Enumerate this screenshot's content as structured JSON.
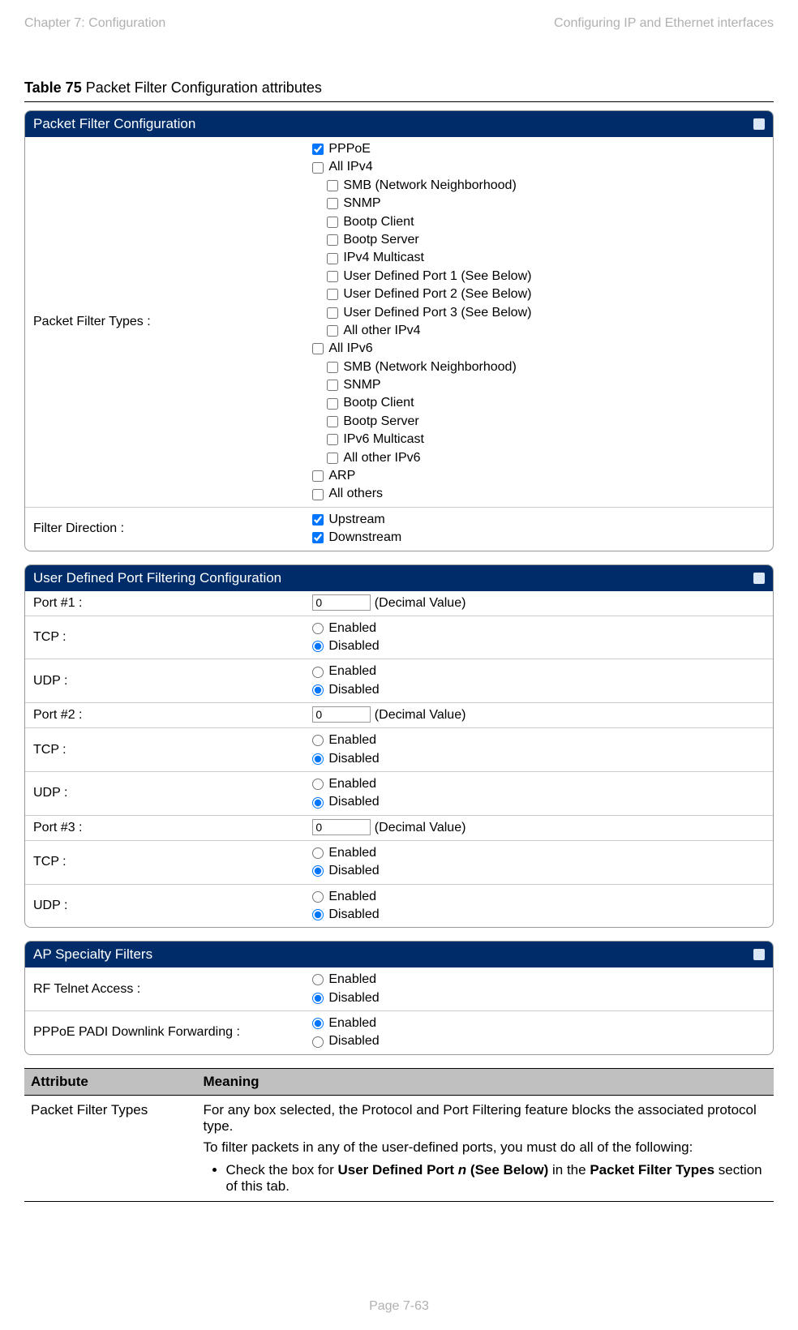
{
  "header": {
    "left": "Chapter 7:  Configuration",
    "right": "Configuring IP and Ethernet interfaces"
  },
  "caption": {
    "bold": "Table 75",
    "rest": " Packet Filter Configuration attributes"
  },
  "panel1": {
    "title": "Packet Filter Configuration",
    "row1": {
      "label": "Packet Filter Types :",
      "items": [
        {
          "label": "PPPoE",
          "checked": true,
          "indent": false
        },
        {
          "label": "All IPv4",
          "checked": false,
          "indent": false
        },
        {
          "label": "SMB (Network Neighborhood)",
          "checked": false,
          "indent": true
        },
        {
          "label": "SNMP",
          "checked": false,
          "indent": true
        },
        {
          "label": "Bootp Client",
          "checked": false,
          "indent": true
        },
        {
          "label": "Bootp Server",
          "checked": false,
          "indent": true
        },
        {
          "label": "IPv4 Multicast",
          "checked": false,
          "indent": true
        },
        {
          "label": "User Defined Port 1 (See Below)",
          "checked": false,
          "indent": true
        },
        {
          "label": "User Defined Port 2 (See Below)",
          "checked": false,
          "indent": true
        },
        {
          "label": "User Defined Port 3 (See Below)",
          "checked": false,
          "indent": true
        },
        {
          "label": "All other IPv4",
          "checked": false,
          "indent": true
        },
        {
          "label": "All IPv6",
          "checked": false,
          "indent": false
        },
        {
          "label": "SMB (Network Neighborhood)",
          "checked": false,
          "indent": true
        },
        {
          "label": "SNMP",
          "checked": false,
          "indent": true
        },
        {
          "label": "Bootp Client",
          "checked": false,
          "indent": true
        },
        {
          "label": "Bootp Server",
          "checked": false,
          "indent": true
        },
        {
          "label": "IPv6 Multicast",
          "checked": false,
          "indent": true
        },
        {
          "label": "All other IPv6",
          "checked": false,
          "indent": true
        },
        {
          "label": "ARP",
          "checked": false,
          "indent": false
        },
        {
          "label": "All others",
          "checked": false,
          "indent": false
        }
      ]
    },
    "row2": {
      "label": "Filter Direction :",
      "items": [
        {
          "label": "Upstream",
          "checked": true
        },
        {
          "label": "Downstream",
          "checked": true
        }
      ]
    }
  },
  "panel2": {
    "title": "User Defined Port Filtering Configuration",
    "port_hint": "(Decimal Value)",
    "enabled": "Enabled",
    "disabled": "Disabled",
    "rows": [
      {
        "label": "Port #1 :",
        "type": "port",
        "value": "0"
      },
      {
        "label": "TCP :",
        "type": "radio",
        "name": "tcp1",
        "sel": "Disabled"
      },
      {
        "label": "UDP :",
        "type": "radio",
        "name": "udp1",
        "sel": "Disabled"
      },
      {
        "label": "Port #2 :",
        "type": "port",
        "value": "0"
      },
      {
        "label": "TCP :",
        "type": "radio",
        "name": "tcp2",
        "sel": "Disabled"
      },
      {
        "label": "UDP :",
        "type": "radio",
        "name": "udp2",
        "sel": "Disabled"
      },
      {
        "label": "Port #3 :",
        "type": "port",
        "value": "0"
      },
      {
        "label": "TCP :",
        "type": "radio",
        "name": "tcp3",
        "sel": "Disabled"
      },
      {
        "label": "UDP :",
        "type": "radio",
        "name": "udp3",
        "sel": "Disabled"
      }
    ]
  },
  "panel3": {
    "title": "AP Specialty Filters",
    "enabled": "Enabled",
    "disabled": "Disabled",
    "rows": [
      {
        "label": "RF Telnet Access :",
        "name": "rf",
        "sel": "Disabled"
      },
      {
        "label": "PPPoE PADI Downlink Forwarding :",
        "name": "padi",
        "sel": "Enabled"
      }
    ]
  },
  "attr_table": {
    "h1": "Attribute",
    "h2": "Meaning",
    "r1c1": "Packet Filter Types",
    "r1p1": "For any box selected, the Protocol and Port Filtering feature blocks the associated protocol type.",
    "r1p2": "To filter packets in any of the user-defined ports, you must do all of the following:",
    "r1b_pre": "Check the box for ",
    "r1b_bold1": "User Defined Port ",
    "r1b_ital": "n",
    "r1b_bold2": " (See Below)",
    "r1b_mid": " in the ",
    "r1b_bold3": "Packet Filter Types",
    "r1b_post": " section of this tab."
  },
  "footer": "Page 7-63"
}
